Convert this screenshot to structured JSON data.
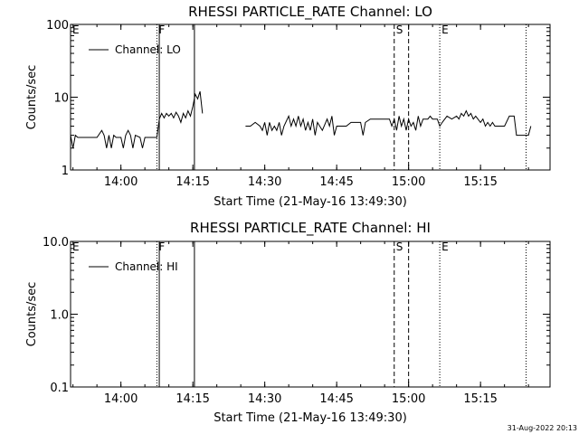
{
  "footer": {
    "timestamp": "31-Aug-2022 20:13"
  },
  "chart_data": [
    {
      "type": "line",
      "title": "RHESSI PARTICLE_RATE Channel: LO",
      "xlabel": "Start Time (21-May-16 13:49:30)",
      "ylabel": "Counts/sec",
      "yscale": "log",
      "ylim": [
        1,
        100
      ],
      "xlim": [
        "13:49:30",
        "15:29:30"
      ],
      "x_ticks": [
        "14:00",
        "14:15",
        "14:30",
        "14:45",
        "15:00",
        "15:15"
      ],
      "y_ticks": [
        "1",
        "10",
        "100"
      ],
      "legend": {
        "label": "Channel: LO",
        "placement": "top-left"
      },
      "annotations": [
        {
          "label": "E",
          "time": "13:49:30",
          "line": "none"
        },
        {
          "label": "F",
          "time": "14:07:30",
          "line": "dotted"
        },
        {
          "label": "",
          "time": "14:08:00",
          "line": "solid"
        },
        {
          "label": "",
          "time": "14:15:20",
          "line": "solid"
        },
        {
          "label": "S",
          "time": "14:57:00",
          "line": "dashed"
        },
        {
          "label": "",
          "time": "15:00:00",
          "line": "dashed"
        },
        {
          "label": "E",
          "time": "15:06:30",
          "line": "dotted"
        },
        {
          "label": "",
          "time": "15:24:30",
          "line": "dotted"
        }
      ],
      "series": [
        {
          "name": "Channel: LO",
          "segments": [
            [
              [
                "13:49:30",
                3.0
              ],
              [
                "13:50:00",
                2.0
              ],
              [
                "13:50:30",
                3.0
              ],
              [
                "13:51:00",
                2.8
              ],
              [
                "13:52:00",
                2.8
              ],
              [
                "13:53:00",
                2.8
              ],
              [
                "13:54:00",
                2.8
              ],
              [
                "13:55:00",
                2.8
              ],
              [
                "13:56:00",
                3.5
              ],
              [
                "13:56:30",
                3.0
              ],
              [
                "13:57:00",
                2.0
              ],
              [
                "13:57:30",
                3.0
              ],
              [
                "13:58:00",
                2.0
              ],
              [
                "13:58:30",
                3.0
              ],
              [
                "13:59:00",
                2.8
              ],
              [
                "14:00:00",
                2.8
              ],
              [
                "14:00:30",
                2.0
              ],
              [
                "14:01:00",
                3.0
              ],
              [
                "14:01:30",
                3.5
              ],
              [
                "14:02:00",
                3.0
              ],
              [
                "14:02:30",
                2.0
              ],
              [
                "14:03:00",
                3.0
              ],
              [
                "14:04:00",
                2.8
              ],
              [
                "14:04:30",
                2.0
              ],
              [
                "14:05:00",
                2.8
              ],
              [
                "14:06:00",
                2.8
              ],
              [
                "14:07:00",
                2.8
              ],
              [
                "14:07:30",
                2.8
              ],
              [
                "14:08:00",
                5.0
              ],
              [
                "14:08:30",
                6.0
              ],
              [
                "14:09:00",
                5.2
              ],
              [
                "14:09:30",
                6.0
              ],
              [
                "14:10:00",
                5.5
              ],
              [
                "14:10:30",
                6.0
              ],
              [
                "14:11:00",
                5.2
              ],
              [
                "14:11:30",
                6.2
              ],
              [
                "14:12:00",
                5.5
              ],
              [
                "14:12:30",
                4.5
              ],
              [
                "14:13:00",
                6.0
              ],
              [
                "14:13:30",
                5.2
              ],
              [
                "14:14:00",
                6.5
              ],
              [
                "14:14:30",
                5.5
              ],
              [
                "14:15:00",
                7.5
              ],
              [
                "14:15:30",
                11.0
              ],
              [
                "14:16:00",
                9.5
              ],
              [
                "14:16:30",
                12.0
              ],
              [
                "14:17:00",
                6.0
              ]
            ],
            [
              [
                "14:26:00",
                4.0
              ],
              [
                "14:27:00",
                4.0
              ],
              [
                "14:28:00",
                4.5
              ],
              [
                "14:29:00",
                4.0
              ],
              [
                "14:29:30",
                3.5
              ],
              [
                "14:30:00",
                4.5
              ],
              [
                "14:30:30",
                3.0
              ],
              [
                "14:31:00",
                4.5
              ],
              [
                "14:31:30",
                3.5
              ],
              [
                "14:32:00",
                4.0
              ],
              [
                "14:32:30",
                3.5
              ],
              [
                "14:33:00",
                4.5
              ],
              [
                "14:33:30",
                3.0
              ],
              [
                "14:34:00",
                4.0
              ],
              [
                "14:35:00",
                5.5
              ],
              [
                "14:35:30",
                4.0
              ],
              [
                "14:36:00",
                5.0
              ],
              [
                "14:36:30",
                4.0
              ],
              [
                "14:37:00",
                5.5
              ],
              [
                "14:37:30",
                4.0
              ],
              [
                "14:38:00",
                5.0
              ],
              [
                "14:38:30",
                3.5
              ],
              [
                "14:39:00",
                4.5
              ],
              [
                "14:39:30",
                3.5
              ],
              [
                "14:40:00",
                5.0
              ],
              [
                "14:40:30",
                3.0
              ],
              [
                "14:41:00",
                4.5
              ],
              [
                "14:42:00",
                3.5
              ],
              [
                "14:43:00",
                5.0
              ],
              [
                "14:43:30",
                4.0
              ],
              [
                "14:44:00",
                5.5
              ],
              [
                "14:44:30",
                3.0
              ],
              [
                "14:45:00",
                4.0
              ],
              [
                "14:46:00",
                4.0
              ],
              [
                "14:47:00",
                4.0
              ],
              [
                "14:48:00",
                4.5
              ],
              [
                "14:49:00",
                4.5
              ],
              [
                "14:50:00",
                4.5
              ],
              [
                "14:50:30",
                3.0
              ],
              [
                "14:51:00",
                4.5
              ],
              [
                "14:52:00",
                5.0
              ],
              [
                "14:53:00",
                5.0
              ],
              [
                "14:54:00",
                5.0
              ],
              [
                "14:55:00",
                5.0
              ],
              [
                "14:56:00",
                5.0
              ],
              [
                "14:56:30",
                4.0
              ],
              [
                "14:57:00",
                5.0
              ],
              [
                "14:57:30",
                3.5
              ],
              [
                "14:58:00",
                5.5
              ],
              [
                "14:58:30",
                4.0
              ],
              [
                "14:59:00",
                5.0
              ],
              [
                "14:59:30",
                3.5
              ],
              [
                "15:00:00",
                5.0
              ],
              [
                "15:00:30",
                4.0
              ],
              [
                "15:01:00",
                4.5
              ],
              [
                "15:01:30",
                3.5
              ],
              [
                "15:02:00",
                5.5
              ],
              [
                "15:02:30",
                4.0
              ],
              [
                "15:03:00",
                5.0
              ],
              [
                "15:04:00",
                5.0
              ],
              [
                "15:04:30",
                5.5
              ],
              [
                "15:05:00",
                5.0
              ],
              [
                "15:06:00",
                5.0
              ],
              [
                "15:06:30",
                4.0
              ],
              [
                "15:07:00",
                4.5
              ],
              [
                "15:08:00",
                5.5
              ],
              [
                "15:09:00",
                5.0
              ],
              [
                "15:10:00",
                5.5
              ],
              [
                "15:10:30",
                5.0
              ],
              [
                "15:11:00",
                6.0
              ],
              [
                "15:11:30",
                5.5
              ],
              [
                "15:12:00",
                6.5
              ],
              [
                "15:12:30",
                5.5
              ],
              [
                "15:13:00",
                6.0
              ],
              [
                "15:13:30",
                5.0
              ],
              [
                "15:14:00",
                5.5
              ],
              [
                "15:15:00",
                4.5
              ],
              [
                "15:15:30",
                5.0
              ],
              [
                "15:16:00",
                4.0
              ],
              [
                "15:16:30",
                4.5
              ],
              [
                "15:17:00",
                4.0
              ],
              [
                "15:17:30",
                4.5
              ],
              [
                "15:18:00",
                4.0
              ],
              [
                "15:19:00",
                4.0
              ],
              [
                "15:20:00",
                4.0
              ],
              [
                "15:21:00",
                5.5
              ],
              [
                "15:22:00",
                5.5
              ],
              [
                "15:22:30",
                3.0
              ],
              [
                "15:23:00",
                3.0
              ],
              [
                "15:24:00",
                3.0
              ],
              [
                "15:25:00",
                3.0
              ],
              [
                "15:25:30",
                4.0
              ]
            ]
          ]
        }
      ]
    },
    {
      "type": "line",
      "title": "RHESSI PARTICLE_RATE Channel: HI",
      "xlabel": "Start Time (21-May-16 13:49:30)",
      "ylabel": "Counts/sec",
      "yscale": "log",
      "ylim": [
        0.1,
        10
      ],
      "xlim": [
        "13:49:30",
        "15:29:30"
      ],
      "x_ticks": [
        "14:00",
        "14:15",
        "14:30",
        "14:45",
        "15:00",
        "15:15"
      ],
      "y_ticks": [
        "0.1",
        "1.0",
        "10.0"
      ],
      "legend": {
        "label": "Channel: HI",
        "placement": "top-left"
      },
      "annotations": [
        {
          "label": "E",
          "time": "13:49:30",
          "line": "none"
        },
        {
          "label": "F",
          "time": "14:07:30",
          "line": "dotted"
        },
        {
          "label": "",
          "time": "14:08:00",
          "line": "solid"
        },
        {
          "label": "",
          "time": "14:15:20",
          "line": "solid"
        },
        {
          "label": "S",
          "time": "14:57:00",
          "line": "dashed"
        },
        {
          "label": "",
          "time": "15:00:00",
          "line": "dashed"
        },
        {
          "label": "E",
          "time": "15:06:30",
          "line": "dotted"
        },
        {
          "label": "",
          "time": "15:24:30",
          "line": "dotted"
        }
      ],
      "series": [
        {
          "name": "Channel: HI",
          "segments": []
        }
      ]
    }
  ]
}
